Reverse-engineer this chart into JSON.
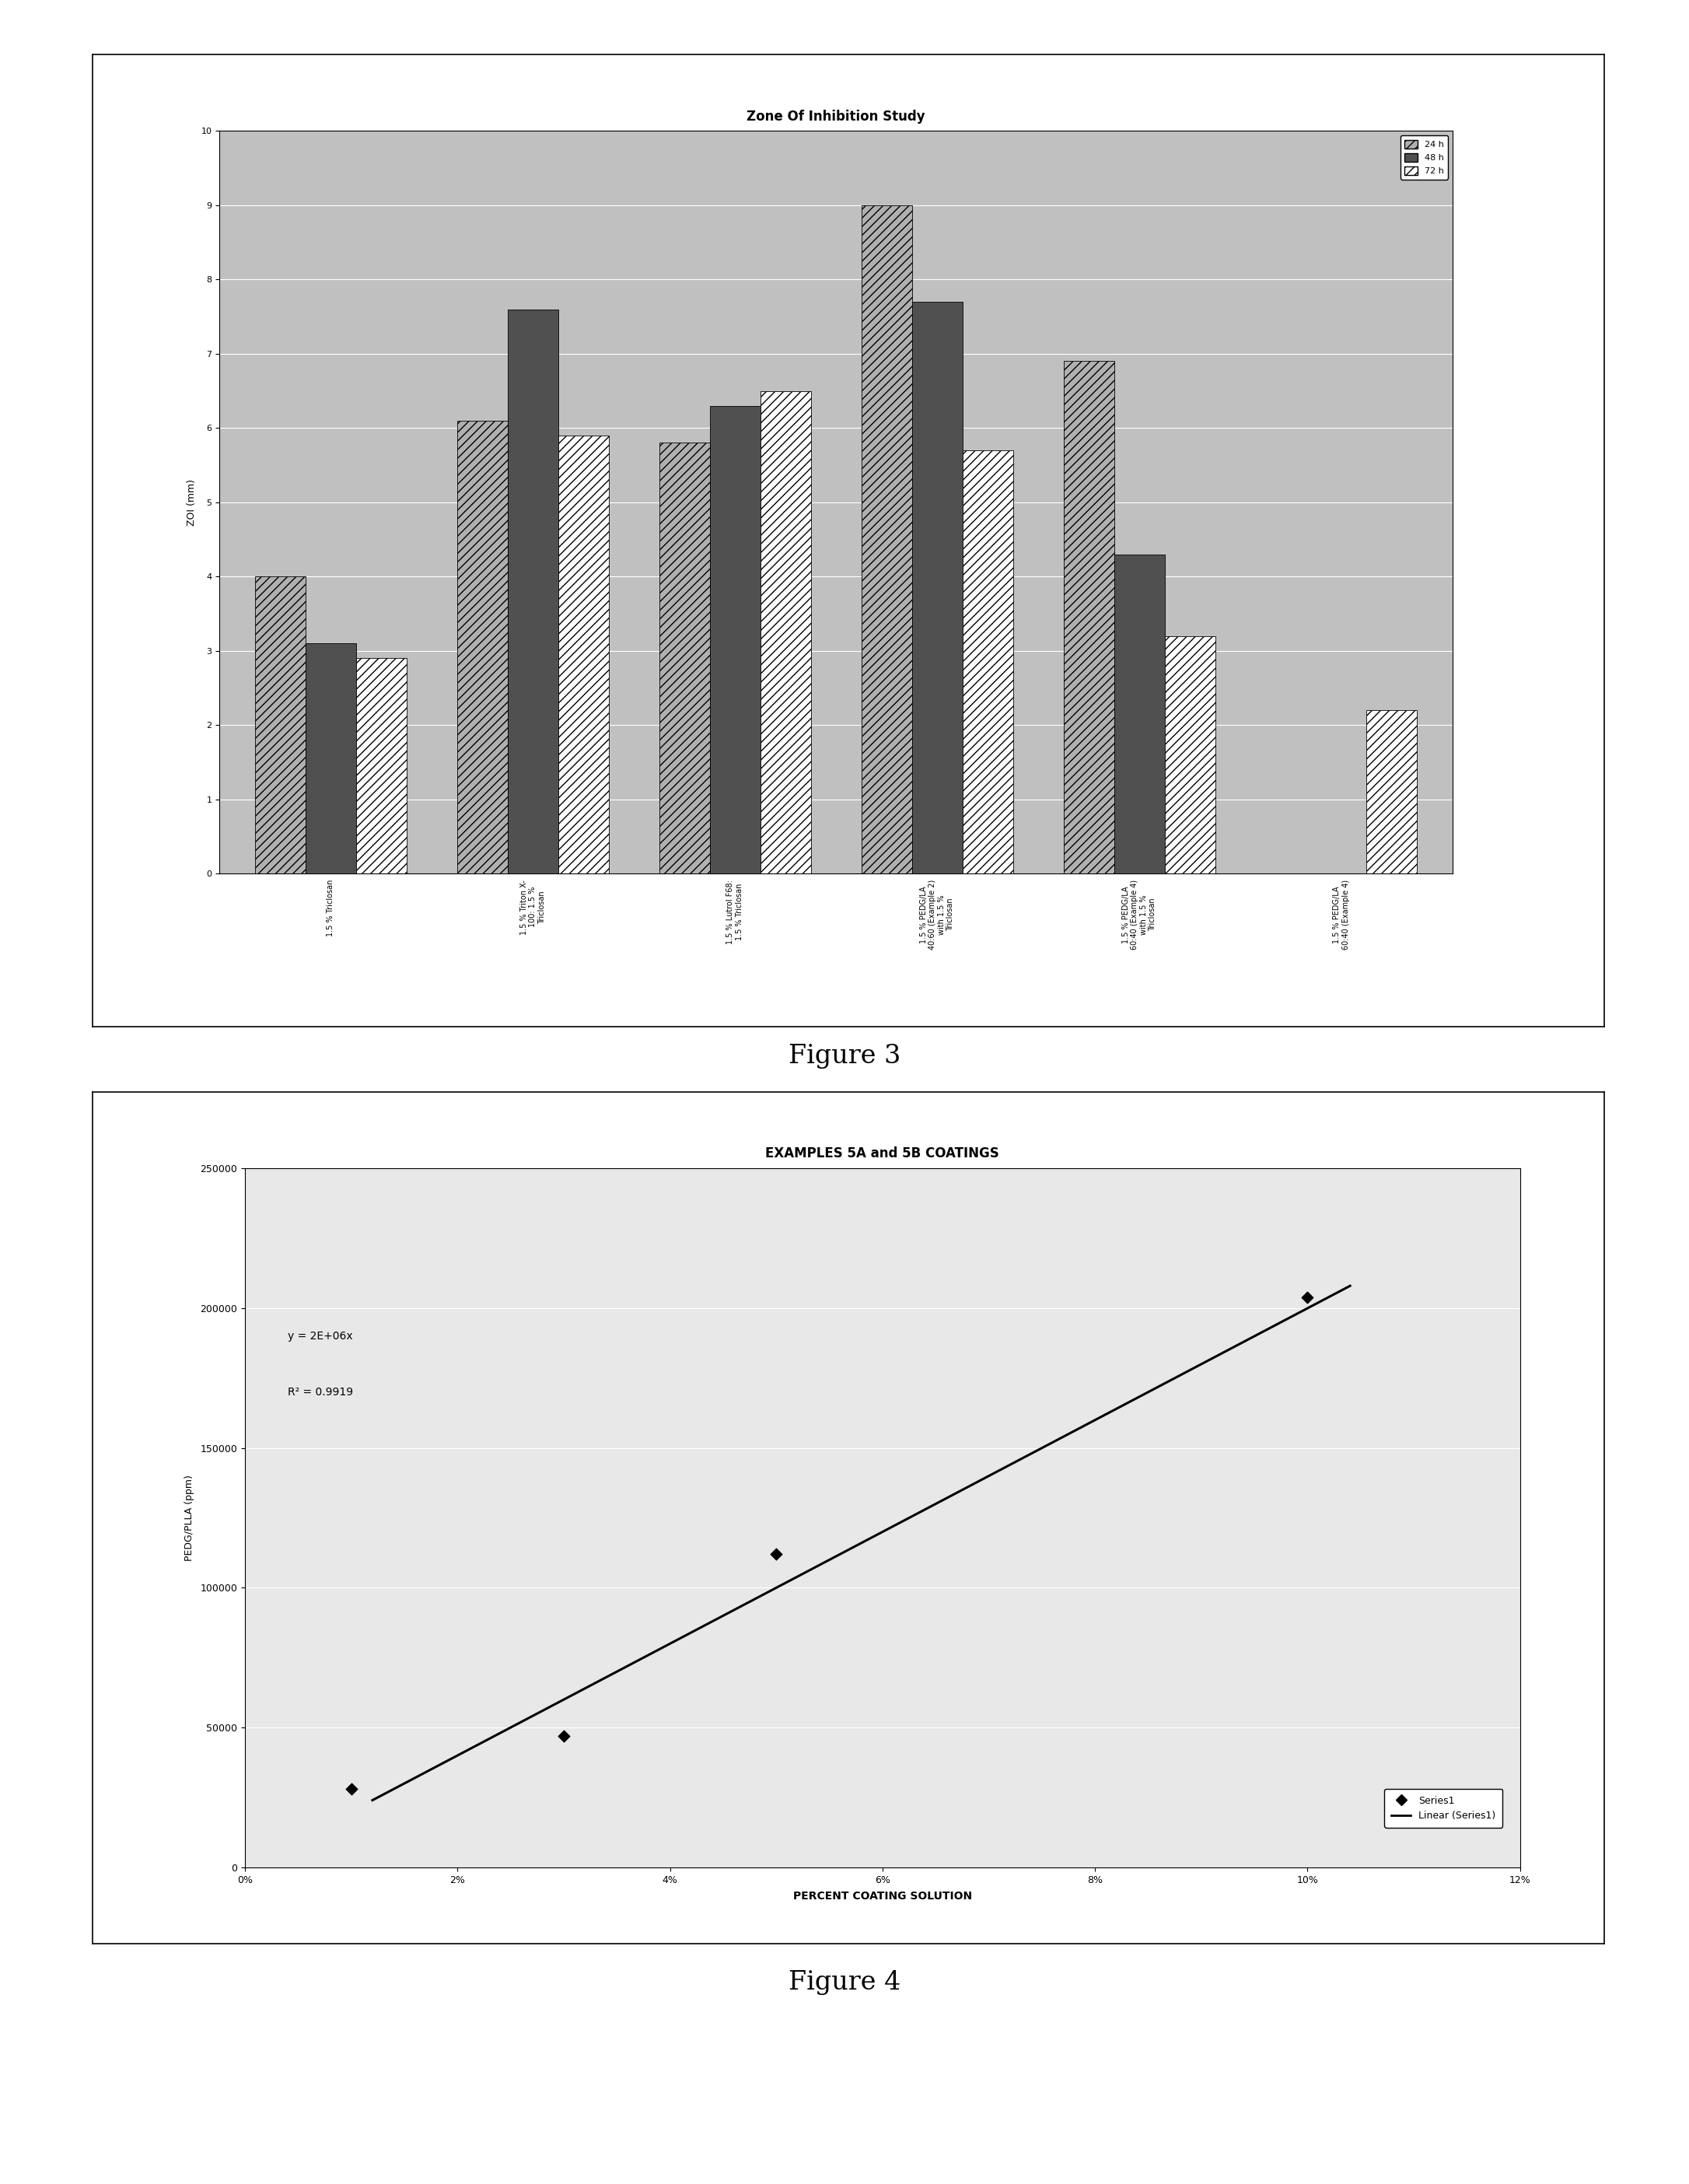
{
  "fig3": {
    "title": "Zone Of Inhibition Study",
    "ylabel": "ZOI (mm)",
    "ylim": [
      0,
      10
    ],
    "yticks": [
      0,
      1,
      2,
      3,
      4,
      5,
      6,
      7,
      8,
      9,
      10
    ],
    "categories": [
      "1.5 % Triclosan",
      "1.5 % Triton X-\n100: 1.5 %\nTriclosan",
      "1.5 % Lutrol F68:\n1.5 % Triclosan",
      "1.5 % PEDG/LA\n40:60 (Example 2)\nwith 1.5 %\nTriclosan",
      "1.5 % PEDG/LA\n60:40 (Example 4)\nwith 1.5 %\nTriclosan",
      "1.5 % PEDG/LA\n60:40 (Example 4)"
    ],
    "series_24h": [
      4.0,
      6.1,
      5.8,
      9.0,
      6.9,
      0.0
    ],
    "series_48h": [
      3.1,
      7.6,
      6.3,
      7.7,
      4.3,
      0.0
    ],
    "series_72h": [
      2.9,
      5.9,
      6.5,
      5.7,
      3.2,
      2.2
    ],
    "bar_width": 0.25,
    "bg_color": "#c0c0c0",
    "bar_color_24": "#b0b0b0",
    "bar_color_48": "#505050",
    "bar_color_72": "#ffffff"
  },
  "fig4": {
    "title": "EXAMPLES 5A and 5B COATINGS",
    "xlabel": "PERCENT COATING SOLUTION",
    "ylabel": "PEDG/PLLA (ppm)",
    "equation": "y = 2E+06x",
    "r_squared": "R² = 0.9919",
    "data_x": [
      0.01,
      0.03,
      0.05,
      0.1
    ],
    "data_y": [
      28000,
      47000,
      112000,
      204000
    ],
    "xlim": [
      0,
      0.12
    ],
    "ylim": [
      0,
      250000
    ],
    "xticks": [
      0,
      0.02,
      0.04,
      0.06,
      0.08,
      0.1,
      0.12
    ],
    "xtick_labels": [
      "0%",
      "2%",
      "4%",
      "6%",
      "8%",
      "10%",
      "12%"
    ],
    "yticks": [
      0,
      50000,
      100000,
      150000,
      200000,
      250000
    ],
    "plot_area_color": "#e8e8e8"
  },
  "figure3_label": "Figure 3",
  "figure4_label": "Figure 4"
}
